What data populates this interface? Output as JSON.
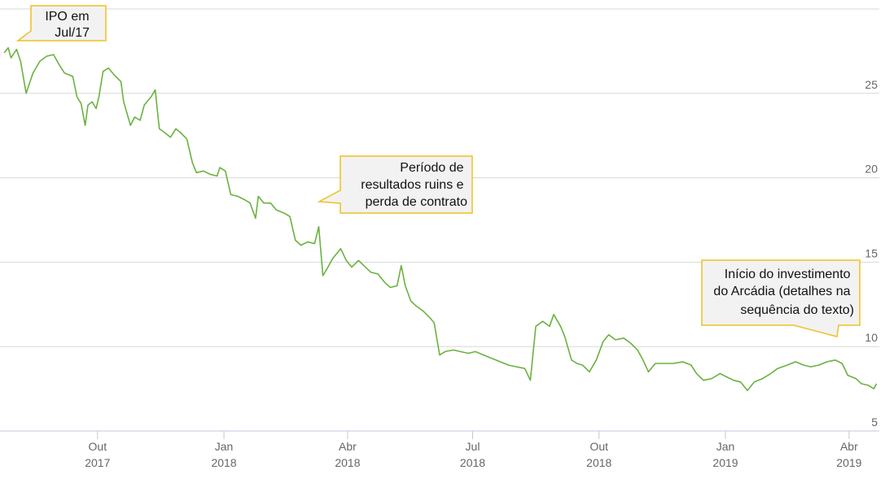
{
  "chart_data": {
    "type": "line",
    "color": "#6ab23e",
    "xlim": [
      "2017-07-22",
      "2019-04-23"
    ],
    "xticks": [
      {
        "value": "2017-10-01",
        "label": "Out 2017"
      },
      {
        "value": "2018-01-01",
        "label": "Jan 2018"
      },
      {
        "value": "2018-04-01",
        "label": "Abr 2018"
      },
      {
        "value": "2018-07-01",
        "label": "Jul 2018"
      },
      {
        "value": "2018-10-01",
        "label": "Out 2018"
      },
      {
        "value": "2019-01-01",
        "label": "Jan 2019"
      },
      {
        "value": "2019-04-01",
        "label": "Abr 2019"
      }
    ],
    "ylim": [
      5,
      30
    ],
    "yticks": [
      5,
      10,
      15,
      20,
      25
    ],
    "grid": true,
    "annotations": [
      {
        "lines": [
          "IPO em",
          "Jul/17"
        ]
      },
      {
        "lines": [
          "Período de",
          "resultados ruins e",
          "perda de contrato"
        ]
      },
      {
        "lines": [
          "Início do investimento",
          "do Arcádia (detalhes na",
          "sequência do texto)"
        ]
      }
    ],
    "x": [
      "2017-07-25",
      "2017-07-28",
      "2017-07-30",
      "2017-08-03",
      "2017-08-06",
      "2017-08-10",
      "2017-08-15",
      "2017-08-20",
      "2017-08-25",
      "2017-08-30",
      "2017-09-03",
      "2017-09-07",
      "2017-09-13",
      "2017-09-16",
      "2017-09-19",
      "2017-09-22",
      "2017-09-24",
      "2017-09-27",
      "2017-09-30",
      "2017-10-02",
      "2017-10-05",
      "2017-10-09",
      "2017-10-13",
      "2017-10-18",
      "2017-10-20",
      "2017-10-25",
      "2017-10-28",
      "2017-11-01",
      "2017-11-04",
      "2017-11-09",
      "2017-11-12",
      "2017-11-14",
      "2017-11-15",
      "2017-11-20",
      "2017-11-23",
      "2017-11-27",
      "2017-11-30",
      "2017-12-05",
      "2017-12-09",
      "2017-12-12",
      "2017-12-17",
      "2017-12-22",
      "2017-12-27",
      "2017-12-29",
      "2018-01-02",
      "2018-01-06",
      "2018-01-11",
      "2018-01-16",
      "2018-01-20",
      "2018-01-24",
      "2018-01-26",
      "2018-01-30",
      "2018-02-04",
      "2018-02-08",
      "2018-02-14",
      "2018-02-18",
      "2018-02-22",
      "2018-02-26",
      "2018-03-03",
      "2018-03-08",
      "2018-03-11",
      "2018-03-14",
      "2018-03-17",
      "2018-03-21",
      "2018-03-27",
      "2018-03-31",
      "2018-04-04",
      "2018-04-09",
      "2018-04-14",
      "2018-04-18",
      "2018-04-23",
      "2018-04-28",
      "2018-05-02",
      "2018-05-07",
      "2018-05-10",
      "2018-05-13",
      "2018-05-17",
      "2018-05-21",
      "2018-05-26",
      "2018-05-31",
      "2018-06-03",
      "2018-06-07",
      "2018-06-11",
      "2018-06-17",
      "2018-06-22",
      "2018-06-28",
      "2018-07-03",
      "2018-07-09",
      "2018-07-15",
      "2018-07-21",
      "2018-07-27",
      "2018-08-02",
      "2018-08-08",
      "2018-08-12",
      "2018-08-16",
      "2018-08-21",
      "2018-08-26",
      "2018-08-29",
      "2018-09-03",
      "2018-09-06",
      "2018-09-11",
      "2018-09-15",
      "2018-09-19",
      "2018-09-24",
      "2018-09-29",
      "2018-10-04",
      "2018-10-08",
      "2018-10-13",
      "2018-10-19",
      "2018-10-24",
      "2018-10-29",
      "2018-11-02",
      "2018-11-06",
      "2018-11-11",
      "2018-11-18",
      "2018-11-24",
      "2018-12-01",
      "2018-12-07",
      "2018-12-11",
      "2018-12-16",
      "2018-12-22",
      "2018-12-28",
      "2019-01-02",
      "2019-01-07",
      "2019-01-12",
      "2019-01-17",
      "2019-01-22",
      "2019-01-28",
      "2019-02-03",
      "2019-02-08",
      "2019-02-15",
      "2019-02-21",
      "2019-02-27",
      "2019-03-04",
      "2019-03-10",
      "2019-03-16",
      "2019-03-22",
      "2019-03-27",
      "2019-03-31",
      "2019-04-06",
      "2019-04-10",
      "2019-04-15",
      "2019-04-19",
      "2019-04-21"
    ],
    "values": [
      27.4,
      27.7,
      27.1,
      27.6,
      26.9,
      25.0,
      26.2,
      26.9,
      27.2,
      27.3,
      26.7,
      26.2,
      26.0,
      24.8,
      24.4,
      23.1,
      24.3,
      24.5,
      24.1,
      24.8,
      26.3,
      26.5,
      26.1,
      25.7,
      24.5,
      23.1,
      23.6,
      23.4,
      24.3,
      24.8,
      25.2,
      23.6,
      22.9,
      22.6,
      22.4,
      22.9,
      22.7,
      22.3,
      20.9,
      20.3,
      20.4,
      20.2,
      20.1,
      20.6,
      20.4,
      19.0,
      18.9,
      18.7,
      18.5,
      17.6,
      18.9,
      18.5,
      18.5,
      18.1,
      17.9,
      17.7,
      16.3,
      16.0,
      16.2,
      16.1,
      17.1,
      14.2,
      14.6,
      15.2,
      15.8,
      15.1,
      14.7,
      15.1,
      14.7,
      14.4,
      14.3,
      13.8,
      13.5,
      13.6,
      14.8,
      13.6,
      12.7,
      12.4,
      12.1,
      11.7,
      11.4,
      9.5,
      9.7,
      9.8,
      9.7,
      9.6,
      9.7,
      9.5,
      9.3,
      9.1,
      8.9,
      8.8,
      8.7,
      8.0,
      11.2,
      11.5,
      11.2,
      11.9,
      11.2,
      10.6,
      9.2,
      9.0,
      8.9,
      8.5,
      9.2,
      10.3,
      10.7,
      10.4,
      10.5,
      10.2,
      9.8,
      9.2,
      8.5,
      9.0,
      9.0,
      9.0,
      9.1,
      8.9,
      8.4,
      8.0,
      8.1,
      8.4,
      8.2,
      8.0,
      7.9,
      7.4,
      7.9,
      8.1,
      8.4,
      8.7,
      8.9,
      9.1,
      8.9,
      8.8,
      8.9,
      9.1,
      9.2,
      9.0,
      8.3,
      8.1,
      7.8,
      7.7,
      7.5,
      7.8
    ]
  }
}
